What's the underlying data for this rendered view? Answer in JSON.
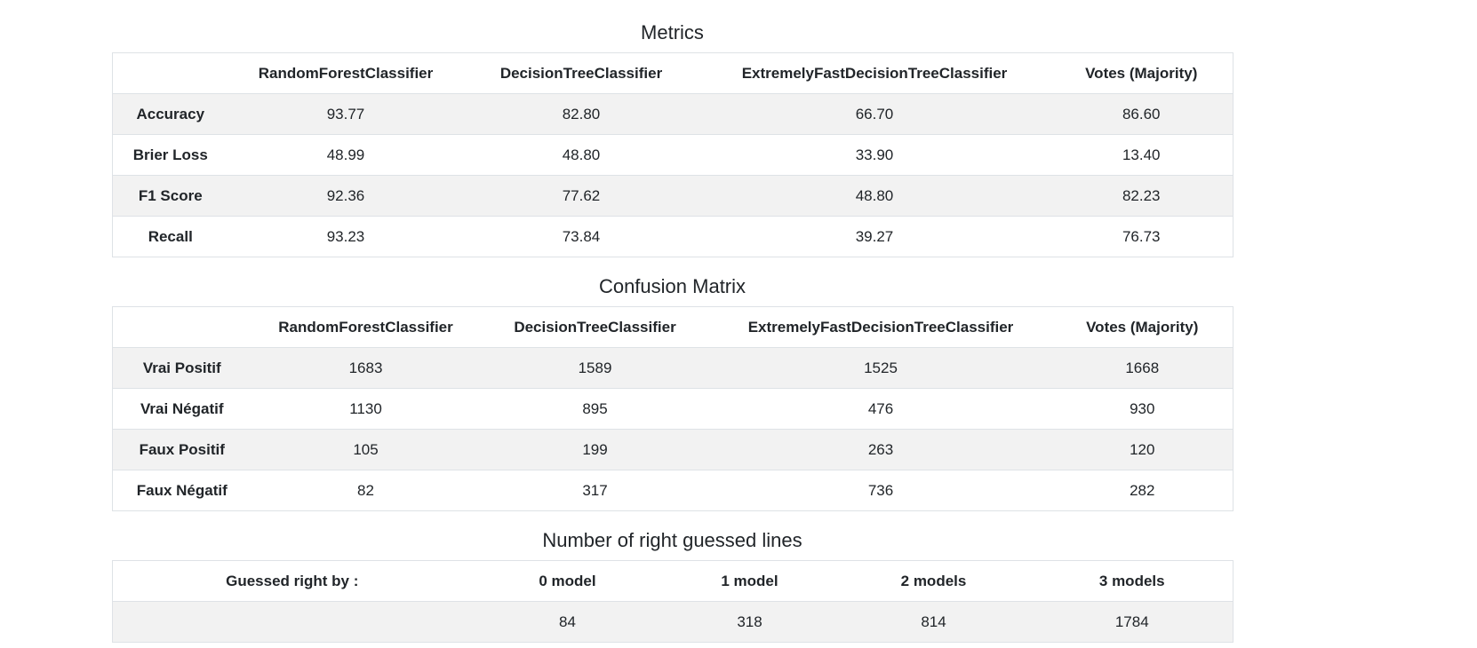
{
  "metrics": {
    "title": "Metrics",
    "columns": [
      "",
      "RandomForestClassifier",
      "DecisionTreeClassifier",
      "ExtremelyFastDecisionTreeClassifier",
      "Votes (Majority)"
    ],
    "rows": [
      {
        "label": "Accuracy",
        "values": [
          "93.77",
          "82.80",
          "66.70",
          "86.60"
        ]
      },
      {
        "label": "Brier Loss",
        "values": [
          "48.99",
          "48.80",
          "33.90",
          "13.40"
        ]
      },
      {
        "label": "F1 Score",
        "values": [
          "92.36",
          "77.62",
          "48.80",
          "82.23"
        ]
      },
      {
        "label": "Recall",
        "values": [
          "93.23",
          "73.84",
          "39.27",
          "76.73"
        ]
      }
    ]
  },
  "confusion": {
    "title": "Confusion Matrix",
    "columns": [
      "",
      "RandomForestClassifier",
      "DecisionTreeClassifier",
      "ExtremelyFastDecisionTreeClassifier",
      "Votes (Majority)"
    ],
    "rows": [
      {
        "label": "Vrai Positif",
        "values": [
          "1683",
          "1589",
          "1525",
          "1668"
        ]
      },
      {
        "label": "Vrai Négatif",
        "values": [
          "1130",
          "895",
          "476",
          "930"
        ]
      },
      {
        "label": "Faux Positif",
        "values": [
          "105",
          "199",
          "263",
          "120"
        ]
      },
      {
        "label": "Faux Négatif",
        "values": [
          "82",
          "317",
          "736",
          "282"
        ]
      }
    ]
  },
  "guessed": {
    "title": "Number of right guessed lines",
    "columns": [
      "Guessed right by :",
      "0 model",
      "1 model",
      "2 models",
      "3 models"
    ],
    "rows": [
      {
        "label": "",
        "values": [
          "84",
          "318",
          "814",
          "1784"
        ]
      }
    ]
  }
}
